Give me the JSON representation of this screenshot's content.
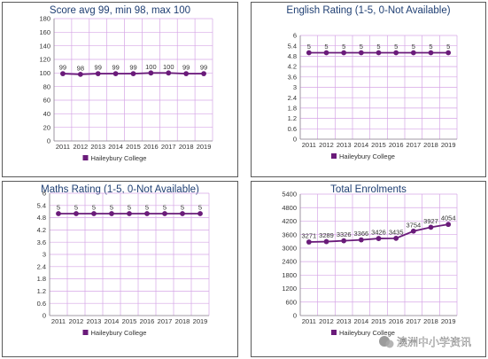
{
  "colors": {
    "series": "#6a1b7a",
    "grid": "#d6a6e6",
    "axis": "#8c8c8c",
    "title": "#1f3f73"
  },
  "watermark": {
    "icon": "wechat-icon",
    "text": "澳洲中小学资讯"
  },
  "chart_data": [
    {
      "type": "line",
      "title": "Score avg 99, min 98, max 100",
      "x": [
        "2011",
        "2012",
        "2013",
        "2014",
        "2015",
        "2016",
        "2017",
        "2018",
        "2019"
      ],
      "ylim": [
        0,
        180
      ],
      "yticks": [
        "0",
        "20",
        "40",
        "60",
        "80",
        "100",
        "120",
        "140",
        "160",
        "180"
      ],
      "grid": true,
      "legend": "bottom",
      "series": [
        {
          "name": "Haileybury College",
          "values": [
            99,
            98,
            99,
            99,
            99,
            100,
            100,
            99,
            99
          ]
        }
      ],
      "labels": [
        "99",
        "98",
        "99",
        "99",
        "99",
        "100",
        "100",
        "99",
        "99"
      ]
    },
    {
      "type": "line",
      "title": "English Rating (1-5, 0-Not Available)",
      "x": [
        "2011",
        "2012",
        "2013",
        "2014",
        "2015",
        "2016",
        "2017",
        "2018",
        "2019"
      ],
      "ylim": [
        0,
        6
      ],
      "yticks": [
        "0",
        "0.6",
        "1.2",
        "1.8",
        "2.4",
        "3",
        "3.6",
        "4.2",
        "4.8",
        "5.4",
        "6"
      ],
      "grid": true,
      "legend": "bottom",
      "series": [
        {
          "name": "Haileybury College",
          "values": [
            5,
            5,
            5,
            5,
            5,
            5,
            5,
            5,
            5
          ]
        }
      ],
      "labels": [
        "5",
        "5",
        "5",
        "5",
        "5",
        "5",
        "5",
        "5",
        "5"
      ]
    },
    {
      "type": "line",
      "title": "Maths Rating (1-5, 0-Not Available)",
      "x": [
        "2011",
        "2012",
        "2013",
        "2014",
        "2015",
        "2016",
        "2017",
        "2018",
        "2019"
      ],
      "ylim": [
        0,
        6
      ],
      "yticks": [
        "0",
        "0.6",
        "1.2",
        "1.8",
        "2.4",
        "3",
        "3.6",
        "4.2",
        "4.8",
        "5.4",
        "6"
      ],
      "grid": true,
      "legend": "bottom",
      "series": [
        {
          "name": "Haileybury College",
          "values": [
            5,
            5,
            5,
            5,
            5,
            5,
            5,
            5,
            5
          ]
        }
      ],
      "labels": [
        "5",
        "5",
        "5",
        "5",
        "5",
        "5",
        "5",
        "5",
        "5"
      ]
    },
    {
      "type": "line",
      "title": "Total Enrolments",
      "x": [
        "2011",
        "2012",
        "2013",
        "2014",
        "2015",
        "2016",
        "2017",
        "2018",
        "2019"
      ],
      "ylim": [
        0,
        5400
      ],
      "yticks": [
        "0",
        "600",
        "1200",
        "1800",
        "2400",
        "3000",
        "3600",
        "4200",
        "4800",
        "5400"
      ],
      "grid": true,
      "legend": "bottom",
      "series": [
        {
          "name": "Haileybury College",
          "values": [
            3271,
            3289,
            3326,
            3366,
            3426,
            3435,
            3754,
            3927,
            4054
          ]
        }
      ],
      "labels": [
        "3271",
        "3289",
        "3326",
        "3366",
        "3426",
        "3435",
        "3754",
        "3927",
        "4054"
      ]
    }
  ]
}
